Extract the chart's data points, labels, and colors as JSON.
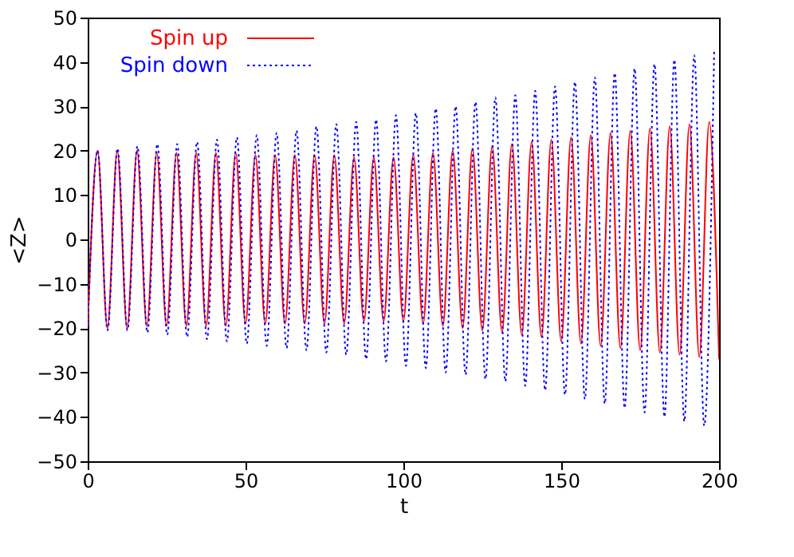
{
  "chart_data": {
    "type": "line",
    "xlabel": "t",
    "ylabel": "<Z>",
    "xlim": [
      0,
      200
    ],
    "xticks": [
      0,
      50,
      100,
      150,
      200
    ],
    "ylim": [
      -50,
      50
    ],
    "yticks": [
      -50,
      -40,
      -30,
      -20,
      -10,
      0,
      10,
      20,
      30,
      40,
      50
    ],
    "grid": false,
    "legend": "top left",
    "marker": "none",
    "series": [
      {
        "name": "Spin up",
        "color": "#ff0000",
        "line_style": "solid",
        "x": [
          0,
          3.125,
          6.25,
          9.375,
          12.5,
          15.625,
          18.75,
          21.875,
          25,
          28.125,
          31.25,
          34.375,
          37.5,
          40.625,
          43.75,
          46.875,
          50,
          53.125,
          56.25,
          59.375,
          62.5,
          65.625,
          68.75,
          71.875,
          75,
          78.125,
          81.25,
          84.375,
          87.5,
          90.625,
          93.75,
          96.875,
          100,
          103.125,
          106.25,
          109.375,
          112.5,
          115.625,
          118.75,
          121.875,
          125,
          128.125,
          131.25,
          134.375,
          137.5,
          140.625,
          143.75,
          146.875,
          150,
          153.125,
          156.25,
          159.375,
          162.5,
          165.625,
          168.75,
          171.875,
          175,
          178.125,
          181.25,
          184.375,
          187.5,
          190.625,
          193.75,
          196.875,
          200
        ],
        "values": [
          -20,
          20,
          -20,
          20,
          -20,
          20,
          -19.5,
          19.5,
          -19.5,
          19.5,
          -19.5,
          19.5,
          -19.5,
          19.5,
          -19.5,
          19.5,
          -19,
          19,
          -19,
          19,
          -19,
          19,
          -19,
          19,
          -19,
          19,
          -19,
          18.5,
          -18.5,
          18.5,
          -18.5,
          18.5,
          -18.5,
          19,
          -19,
          19.5,
          -19.5,
          20,
          -20,
          20.5,
          -20.5,
          21,
          -21,
          21.5,
          -21.5,
          22,
          -22,
          22.5,
          -23,
          23,
          -23.5,
          23.5,
          -24,
          24,
          -24.5,
          24.5,
          -25,
          25,
          -25.5,
          25.5,
          -26,
          26,
          -26.5,
          26.5,
          -27
        ]
      },
      {
        "name": "Spin down",
        "color": "#0000ff",
        "line_style": "dotted",
        "x": [
          0,
          3.15,
          6.3,
          9.45,
          12.6,
          15.75,
          18.9,
          22.05,
          25.2,
          28.35,
          31.5,
          34.65,
          37.8,
          40.95,
          44.1,
          47.25,
          50.4,
          53.55,
          56.7,
          59.85,
          63,
          66.15,
          69.3,
          72.45,
          75.6,
          78.75,
          81.9,
          85.05,
          88.2,
          91.35,
          94.5,
          97.65,
          100.8,
          103.95,
          107.1,
          110.25,
          113.4,
          116.55,
          119.7,
          122.85,
          126,
          129.15,
          132.3,
          135.45,
          138.6,
          141.75,
          144.9,
          148.05,
          151.2,
          154.35,
          157.5,
          160.65,
          163.8,
          166.95,
          170.1,
          173.25,
          176.4,
          179.55,
          182.7,
          185.85,
          189,
          192.15,
          195.3,
          198.45
        ],
        "values": [
          -20,
          20,
          -20.5,
          20.5,
          -20.5,
          21,
          -21,
          21.5,
          -21.5,
          21.5,
          -22,
          22,
          -22.5,
          22.5,
          -23,
          23,
          -23.5,
          23.5,
          -24,
          24,
          -24.5,
          24.5,
          -25,
          25.5,
          -25.5,
          26,
          -26,
          26.5,
          -27,
          27,
          -27.5,
          28,
          -28.5,
          28.5,
          -29,
          29.5,
          -30,
          30,
          -30.5,
          31,
          -31.5,
          32,
          -32,
          32.5,
          -33,
          33.5,
          -34,
          34.5,
          -35,
          35.5,
          -36,
          36.5,
          -37,
          37.5,
          -38,
          38.5,
          -39,
          39.5,
          -40,
          40.5,
          -41,
          41.5,
          -42,
          42.5
        ]
      }
    ]
  }
}
